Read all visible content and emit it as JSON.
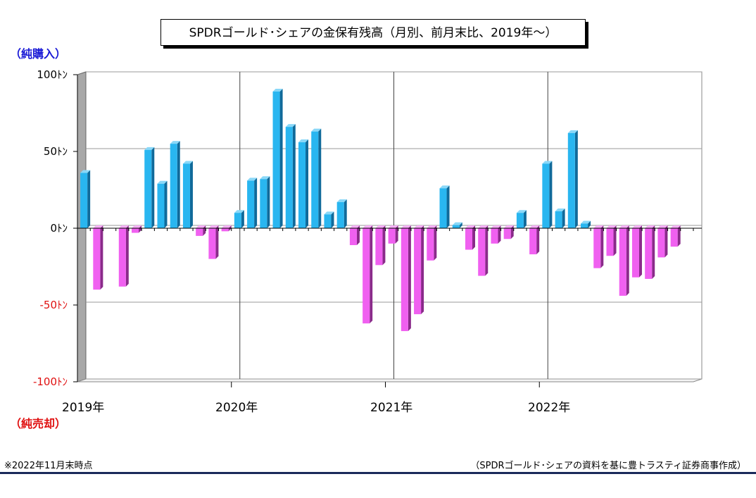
{
  "title": "SPDRゴールド･シェアの金保有残高（月別、前月末比、2019年～）",
  "labels": {
    "buy": "（純購入）",
    "sell": "（純売却）"
  },
  "footnote_left": "※2022年11月末時点",
  "footnote_right": "（SPDRゴールド･シェアの資料を基に豊トラスティ証券商事作成）",
  "colors": {
    "positive": "#29b6f0",
    "negative": "#f060f0",
    "buy_label": "#1a1ad6",
    "sell_label": "#e01010"
  },
  "chart_data": {
    "type": "bar",
    "title": "SPDRゴールド･シェアの金保有残高（月別、前月末比、2019年～）",
    "ylim": [
      -100,
      100
    ],
    "y_ticks": [
      {
        "value": 100,
        "label": "100ﾄﾝ"
      },
      {
        "value": 50,
        "label": "50ﾄﾝ"
      },
      {
        "value": 0,
        "label": "0ﾄﾝ"
      },
      {
        "value": -50,
        "label": "-50ﾄﾝ"
      },
      {
        "value": -100,
        "label": "-100ﾄﾝ"
      }
    ],
    "x_labels": [
      "2019年",
      "2020年",
      "2021年",
      "2022年"
    ],
    "grid": true,
    "months_per_year": 12,
    "values": [
      36,
      -40,
      0,
      -38,
      -3,
      51,
      29,
      55,
      42,
      -5,
      -20,
      -2,
      10,
      31,
      32,
      89,
      66,
      56,
      63,
      9,
      17,
      -11,
      -62,
      -24,
      -10,
      -67,
      -56,
      -21,
      26,
      2,
      -14,
      -31,
      -10,
      -7,
      10,
      -17,
      42,
      11,
      62,
      3,
      -26,
      -18,
      -44,
      -32,
      -33,
      -19,
      -12
    ]
  }
}
